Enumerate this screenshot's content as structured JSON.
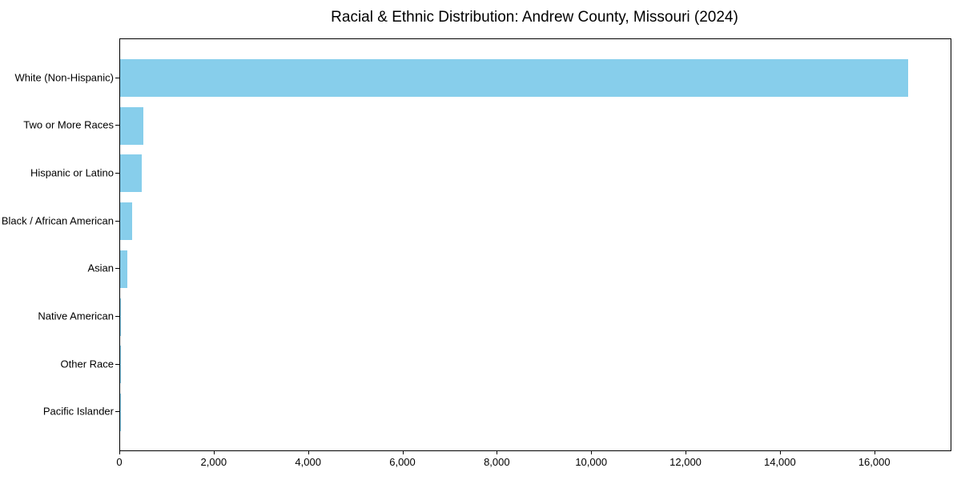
{
  "chart_data": {
    "type": "bar",
    "orientation": "horizontal",
    "title": "Racial & Ethnic Distribution: Andrew County, Missouri (2024)",
    "categories": [
      "White (Non-Hispanic)",
      "Two or More Races",
      "Hispanic or Latino",
      "Black / African American",
      "Asian",
      "Native American",
      "Other Race",
      "Pacific Islander"
    ],
    "values": [
      16700,
      490,
      460,
      260,
      145,
      10,
      6,
      3
    ],
    "xlabel": "",
    "ylabel": "",
    "xlim": [
      0,
      17600
    ],
    "xticks": [
      0,
      2000,
      4000,
      6000,
      8000,
      10000,
      12000,
      14000,
      16000
    ],
    "xtick_labels": [
      "0",
      "2,000",
      "4,000",
      "6,000",
      "8,000",
      "10,000",
      "12,000",
      "14,000",
      "16,000"
    ],
    "bar_color": "#87CEEB",
    "background_color": "#ffffff",
    "axis_color": "#000000",
    "grid": false,
    "legend": null
  }
}
